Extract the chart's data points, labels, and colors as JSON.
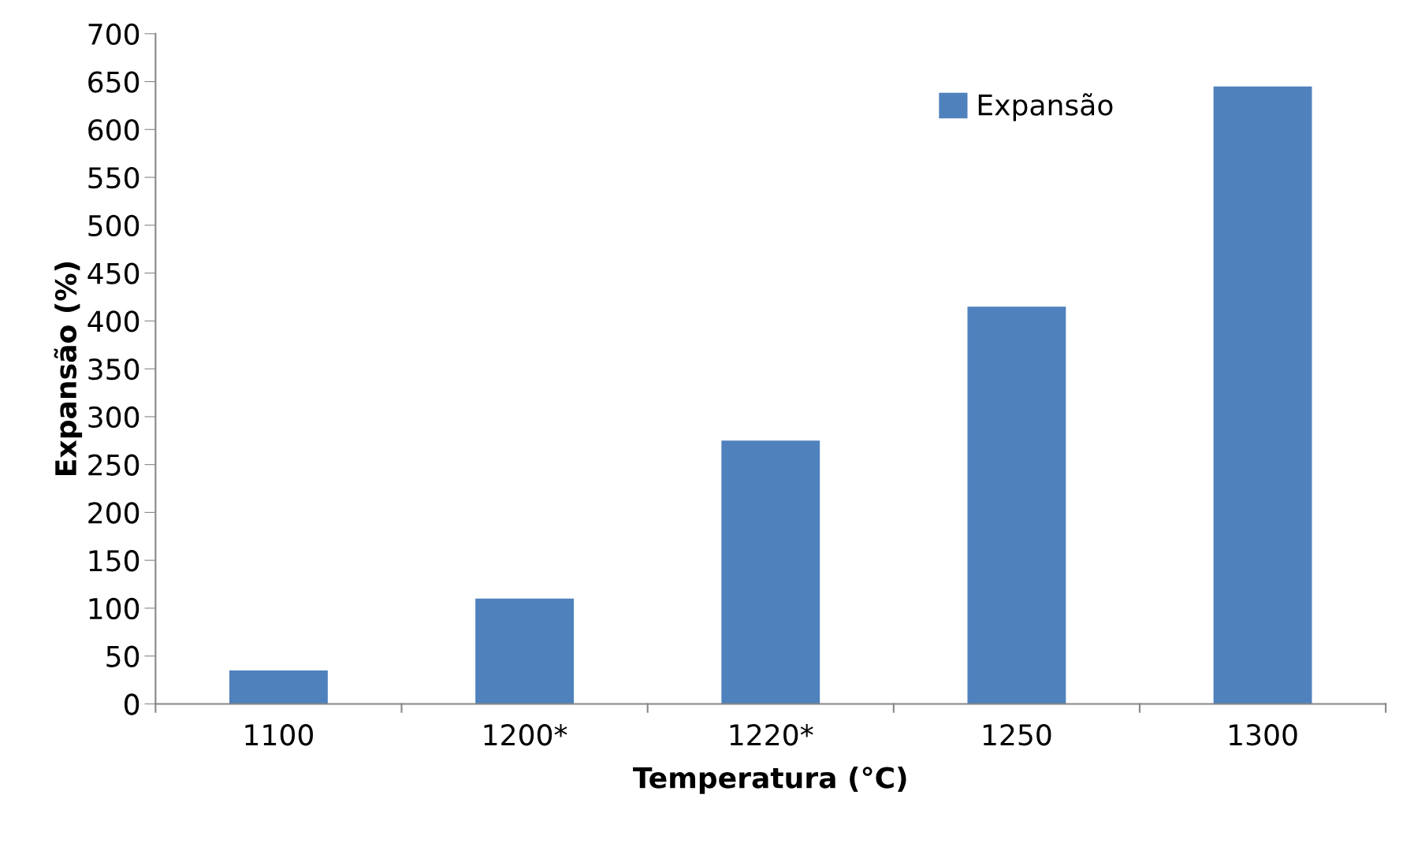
{
  "chart_data": {
    "type": "bar",
    "xlabel": "Temperatura (°C)",
    "ylabel": "Expansão (%)",
    "categories": [
      "1100",
      "1200*",
      "1220*",
      "1250",
      "1300"
    ],
    "series": [
      {
        "name": "Expansão",
        "color": "#4f81bd",
        "values": [
          35,
          110,
          275,
          415,
          645
        ]
      }
    ],
    "ylim": [
      0,
      700
    ],
    "yticks": [
      0,
      50,
      100,
      150,
      200,
      250,
      300,
      350,
      400,
      450,
      500,
      550,
      600,
      650,
      700
    ],
    "grid": false,
    "legend": "top right"
  }
}
